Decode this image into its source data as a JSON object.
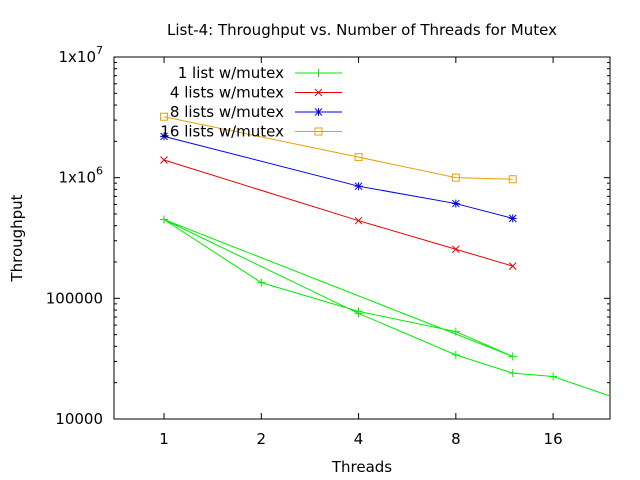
{
  "chart_data": {
    "type": "line",
    "title": "List-4: Throughput vs. Number of Threads for Mutex",
    "xlabel": "Threads",
    "ylabel": "Throughput",
    "x_scale": "log2",
    "y_scale": "log10",
    "xlim": [
      0.7,
      24
    ],
    "ylim": [
      10000,
      10000000
    ],
    "x_ticks": [
      {
        "value": 1,
        "label": "1"
      },
      {
        "value": 2,
        "label": "2"
      },
      {
        "value": 4,
        "label": "4"
      },
      {
        "value": 8,
        "label": "8"
      },
      {
        "value": 16,
        "label": "16"
      }
    ],
    "y_ticks": [
      {
        "value": 10000,
        "base": "10000",
        "exp": ""
      },
      {
        "value": 100000,
        "base": "100000",
        "exp": ""
      },
      {
        "value": 1000000,
        "base": "1x10",
        "exp": "6"
      },
      {
        "value": 10000000,
        "base": "1x10",
        "exp": "7"
      }
    ],
    "legend_position": "top-left",
    "grid": false,
    "series": [
      {
        "name": "1 list w/mutex",
        "color": "#00ee00",
        "marker": "plus",
        "points": [
          [
            1,
            450000
          ],
          [
            2,
            135000
          ],
          [
            4,
            78000
          ],
          [
            8,
            53000
          ],
          [
            12,
            33000
          ],
          [
            1,
            450000
          ],
          [
            4,
            75000
          ],
          [
            8,
            34000
          ],
          [
            12,
            24000
          ],
          [
            16,
            22500
          ],
          [
            24,
            15500
          ]
        ]
      },
      {
        "name": "4 lists w/mutex",
        "color": "#ee0000",
        "marker": "cross",
        "points": [
          [
            1,
            1400000
          ],
          [
            4,
            440000
          ],
          [
            8,
            255000
          ],
          [
            12,
            185000
          ]
        ]
      },
      {
        "name": "8 lists w/mutex",
        "color": "#0000ee",
        "marker": "star",
        "points": [
          [
            1,
            2200000
          ],
          [
            4,
            850000
          ],
          [
            8,
            610000
          ],
          [
            12,
            460000
          ]
        ]
      },
      {
        "name": "16 lists w/mutex",
        "color": "#e8a000",
        "marker": "square",
        "points": [
          [
            1,
            3200000
          ],
          [
            4,
            1480000
          ],
          [
            8,
            1000000
          ],
          [
            12,
            970000
          ]
        ]
      }
    ]
  }
}
